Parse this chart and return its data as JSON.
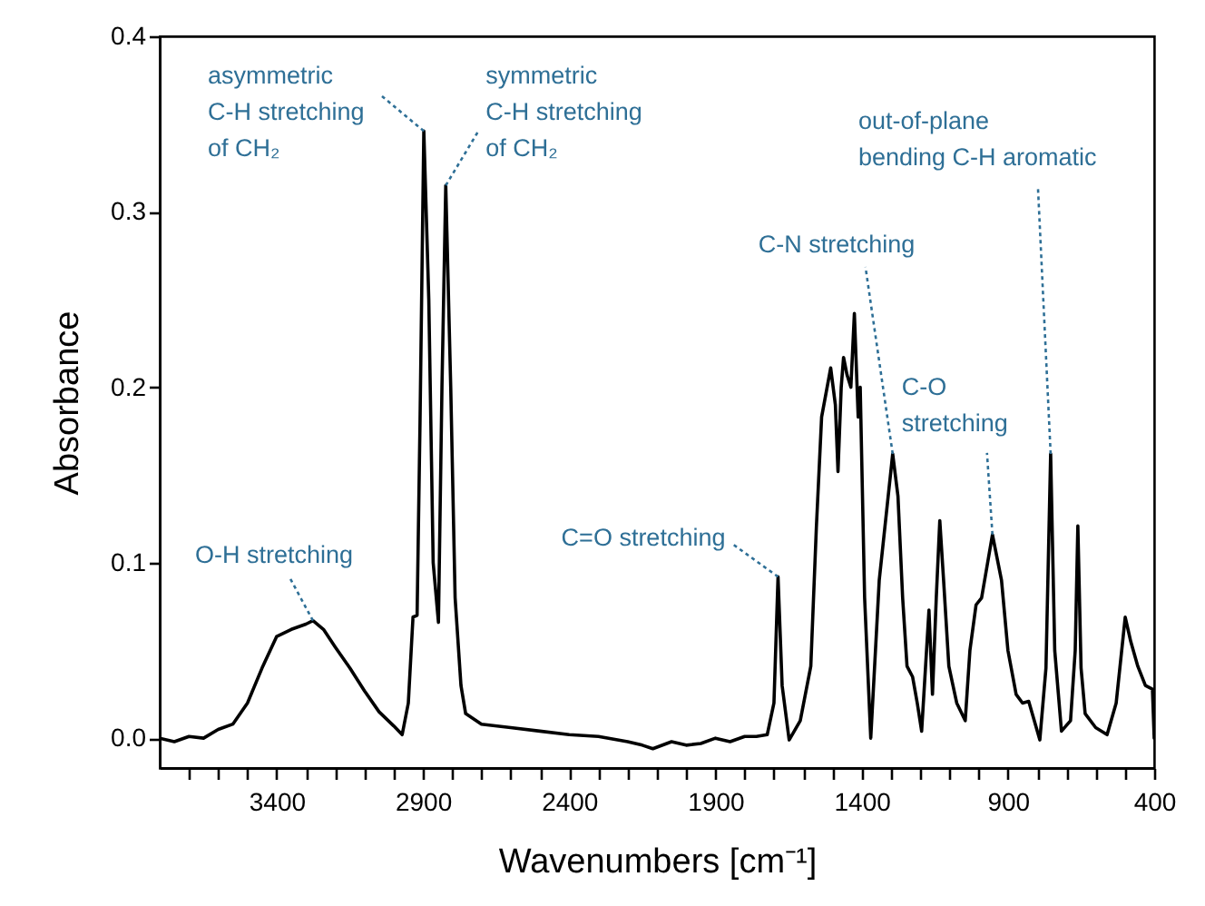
{
  "chart_data": {
    "type": "line",
    "xlabel": "Wavenumbers [cm⁻¹]",
    "ylabel": "Absorbance",
    "xlim": [
      3800,
      400
    ],
    "ylim": [
      -0.017,
      0.4
    ],
    "xticks": [
      {
        "value": 3700,
        "label": null
      },
      {
        "value": 3600,
        "label": null
      },
      {
        "value": 3500,
        "label": null
      },
      3400,
      {
        "value": 3300,
        "label": null
      },
      {
        "value": 3200,
        "label": null
      },
      {
        "value": 3100,
        "label": null
      },
      {
        "value": 3000,
        "label": null
      },
      2900,
      {
        "value": 2800,
        "label": null
      },
      {
        "value": 2700,
        "label": null
      },
      {
        "value": 2600,
        "label": null
      },
      {
        "value": 2500,
        "label": null
      },
      2400,
      {
        "value": 2300,
        "label": null
      },
      {
        "value": 2200,
        "label": null
      },
      {
        "value": 2100,
        "label": null
      },
      {
        "value": 2000,
        "label": null
      },
      1900,
      {
        "value": 1800,
        "label": null
      },
      {
        "value": 1700,
        "label": null
      },
      {
        "value": 1600,
        "label": null
      },
      {
        "value": 1500,
        "label": null
      },
      1400,
      {
        "value": 1300,
        "label": null
      },
      {
        "value": 1200,
        "label": null
      },
      {
        "value": 1100,
        "label": null
      },
      {
        "value": 1000,
        "label": null
      },
      900,
      {
        "value": 800,
        "label": null
      },
      {
        "value": 700,
        "label": null
      },
      {
        "value": 600,
        "label": null
      },
      {
        "value": 500,
        "label": null
      },
      400
    ],
    "yticks": [
      {
        "value": 0,
        "label": "0.0"
      },
      {
        "value": 0.1,
        "label": "0.1"
      },
      {
        "value": 0.2,
        "label": "0.2"
      },
      {
        "value": 0.3,
        "label": "0.3"
      },
      {
        "value": 0.4,
        "label": "0.4"
      }
    ],
    "line_style": "solid",
    "x": [
      3800,
      3750,
      3700,
      3650,
      3600,
      3550,
      3500,
      3450,
      3400,
      3350,
      3300,
      3276,
      3240,
      3200,
      3150,
      3100,
      3050,
      3000,
      2971,
      2950,
      2934,
      2920,
      2910,
      2897,
      2880,
      2865,
      2847,
      2835,
      2822,
      2805,
      2790,
      2770,
      2754,
      2700,
      2600,
      2500,
      2400,
      2300,
      2200,
      2150,
      2114,
      2050,
      2000,
      1950,
      1900,
      1850,
      1800,
      1760,
      1723,
      1700,
      1686,
      1672,
      1648,
      1610,
      1574,
      1555,
      1537,
      1506,
      1490,
      1481,
      1470,
      1462,
      1450,
      1437,
      1425,
      1412,
      1405,
      1390,
      1369,
      1340,
      1294,
      1276,
      1260,
      1245,
      1226,
      1210,
      1195,
      1170,
      1158,
      1145,
      1133,
      1120,
      1102,
      1075,
      1046,
      1030,
      1009,
      990,
      953,
      922,
      900,
      872,
      850,
      829,
      810,
      791,
      770,
      754,
      740,
      717,
      686,
      670,
      661,
      650,
      636,
      600,
      561,
      530,
      499,
      480,
      456,
      430,
      406,
      400
    ],
    "series": [
      {
        "color": "#000000",
        "values": [
          0.0,
          -0.002,
          0.001,
          0.0,
          0.005,
          0.008,
          0.02,
          0.04,
          0.058,
          0.062,
          0.065,
          0.067,
          0.062,
          0.052,
          0.04,
          0.027,
          0.015,
          0.007,
          0.002,
          0.02,
          0.069,
          0.07,
          0.18,
          0.346,
          0.25,
          0.1,
          0.066,
          0.2,
          0.315,
          0.2,
          0.08,
          0.03,
          0.014,
          0.008,
          0.006,
          0.004,
          0.002,
          0.001,
          -0.002,
          -0.004,
          -0.006,
          -0.002,
          -0.004,
          -0.003,
          0.0,
          -0.002,
          0.001,
          0.001,
          0.002,
          0.02,
          0.092,
          0.03,
          -0.001,
          0.01,
          0.041,
          0.12,
          0.183,
          0.211,
          0.19,
          0.152,
          0.2,
          0.217,
          0.207,
          0.2,
          0.242,
          0.183,
          0.2,
          0.08,
          0.0,
          0.09,
          0.162,
          0.138,
          0.08,
          0.041,
          0.035,
          0.02,
          0.004,
          0.073,
          0.025,
          0.08,
          0.124,
          0.09,
          0.041,
          0.02,
          0.01,
          0.05,
          0.076,
          0.08,
          0.116,
          0.09,
          0.05,
          0.025,
          0.02,
          0.021,
          0.01,
          -0.001,
          0.04,
          0.162,
          0.05,
          0.004,
          0.01,
          0.05,
          0.121,
          0.04,
          0.014,
          0.006,
          0.002,
          0.02,
          0.069,
          0.055,
          0.041,
          0.03,
          0.028,
          0.0
        ]
      }
    ],
    "annotations": [
      {
        "text": "O-H stretching",
        "x": 3276,
        "y": 0.067
      },
      {
        "text": "asymmetric\nC-H stretching\nof CH₂",
        "x": 2897,
        "y": 0.346
      },
      {
        "text": "symmetric\nC-H stretching\nof CH₂",
        "x": 2822,
        "y": 0.315
      },
      {
        "text": "C=O stretching",
        "x": 1686,
        "y": 0.092
      },
      {
        "text": "C-N stretching",
        "x": 1294,
        "y": 0.162
      },
      {
        "text": "C-O\nstretching",
        "x": 953,
        "y": 0.116
      },
      {
        "text": "out-of-plane\nbending C-H aromatic",
        "x": 754,
        "y": 0.162
      }
    ]
  }
}
